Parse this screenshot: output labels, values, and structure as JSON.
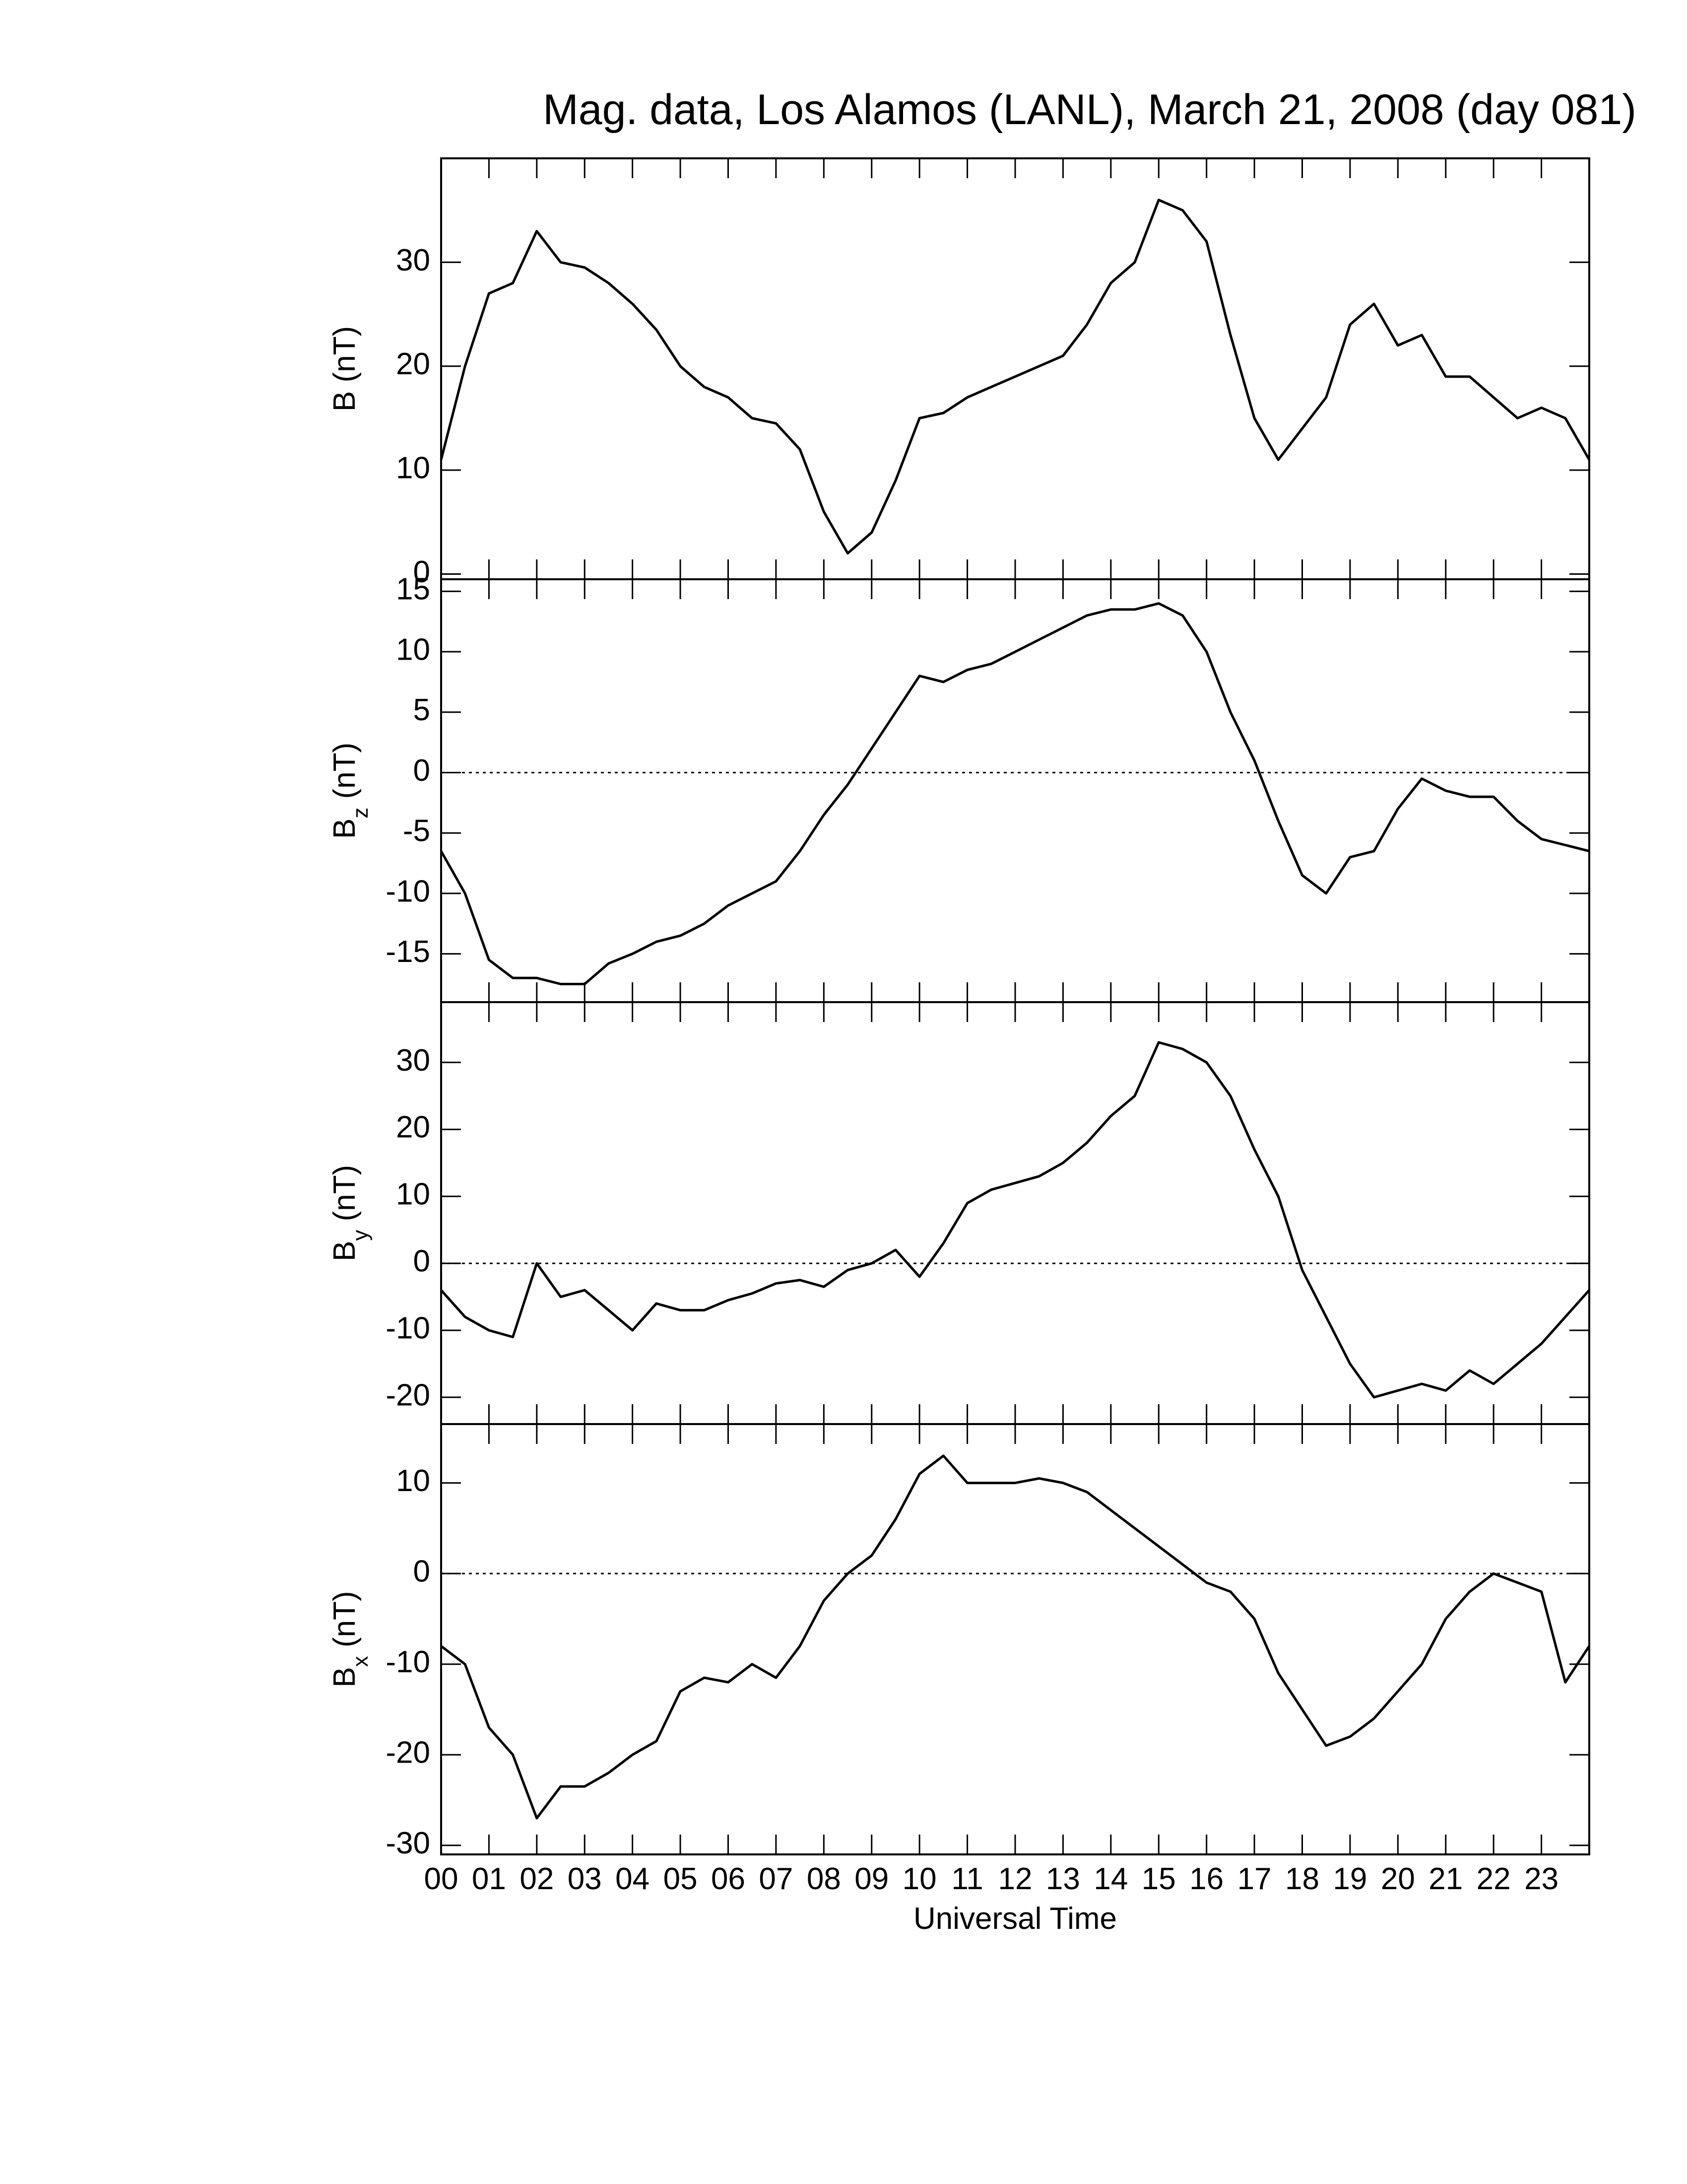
{
  "chart_data": [
    {
      "type": "line",
      "title": "Mag. data, Los Alamos (LANL), March 21, 2008 (day 081)",
      "ylabel": "B",
      "ylabel_unit": "(nT)",
      "color": "#000000",
      "zero_line": false,
      "xlim": [
        0,
        24
      ],
      "ylim": [
        -0.5,
        40
      ],
      "yticks": [
        0,
        10,
        20,
        30
      ],
      "x": [
        0,
        0.5,
        1,
        1.5,
        2,
        2.5,
        3,
        3.5,
        4,
        4.5,
        5,
        5.5,
        6,
        6.5,
        7,
        7.5,
        8,
        8.5,
        9,
        9.5,
        10,
        10.5,
        11,
        11.5,
        12,
        12.5,
        13,
        13.5,
        14,
        14.5,
        15,
        15.5,
        16,
        16.5,
        17,
        17.5,
        18,
        18.5,
        19,
        19.5,
        20,
        20.5,
        21,
        21.5,
        22,
        22.5,
        23,
        23.5,
        24
      ],
      "values": [
        11,
        20,
        27,
        28,
        33,
        30,
        29.5,
        28,
        26,
        23.5,
        20,
        18,
        17,
        15,
        14.5,
        12,
        6,
        2,
        4,
        9,
        15,
        15.5,
        17,
        18,
        19,
        20,
        21,
        24,
        28,
        30,
        36,
        35,
        32,
        23,
        15,
        11,
        14,
        17,
        24,
        26,
        22,
        23,
        19,
        19,
        17,
        15,
        16,
        15,
        11
      ]
    },
    {
      "type": "line",
      "ylabel": "B",
      "ylabel_sub": "z",
      "ylabel_unit": "(nT)",
      "color": "#000000",
      "zero_line": true,
      "xlim": [
        0,
        24
      ],
      "ylim": [
        -19,
        16
      ],
      "yticks": [
        -15,
        -10,
        -5,
        0,
        5,
        10,
        15
      ],
      "x": [
        0,
        0.5,
        1,
        1.5,
        2,
        2.5,
        3,
        3.5,
        4,
        4.5,
        5,
        5.5,
        6,
        6.5,
        7,
        7.5,
        8,
        8.5,
        9,
        9.5,
        10,
        10.5,
        11,
        11.5,
        12,
        12.5,
        13,
        13.5,
        14,
        14.5,
        15,
        15.5,
        16,
        16.5,
        17,
        17.5,
        18,
        18.5,
        19,
        19.5,
        20,
        20.5,
        21,
        21.5,
        22,
        22.5,
        23,
        23.5,
        24
      ],
      "values": [
        -6.5,
        -10,
        -15.5,
        -17,
        -17,
        -17.5,
        -17.5,
        -15.8,
        -15,
        -14,
        -13.5,
        -12.5,
        -11,
        -10,
        -9,
        -6.5,
        -3.5,
        -1,
        2,
        5,
        8,
        7.5,
        8.5,
        9,
        10,
        11,
        12,
        13,
        13.5,
        13.5,
        14,
        13,
        10,
        5,
        1,
        -4,
        -8.5,
        -10,
        -7,
        -6.5,
        -3,
        -0.5,
        -1.5,
        -2,
        -2,
        -4,
        -5.5,
        -6,
        -6.5
      ]
    },
    {
      "type": "line",
      "ylabel": "B",
      "ylabel_sub": "y",
      "ylabel_unit": "(nT)",
      "color": "#000000",
      "zero_line": true,
      "xlim": [
        0,
        24
      ],
      "ylim": [
        -24,
        39
      ],
      "yticks": [
        -20,
        -10,
        0,
        10,
        20,
        30
      ],
      "x": [
        0,
        0.5,
        1,
        1.5,
        2,
        2.5,
        3,
        3.5,
        4,
        4.5,
        5,
        5.5,
        6,
        6.5,
        7,
        7.5,
        8,
        8.5,
        9,
        9.5,
        10,
        10.5,
        11,
        11.5,
        12,
        12.5,
        13,
        13.5,
        14,
        14.5,
        15,
        15.5,
        16,
        16.5,
        17,
        17.5,
        18,
        18.5,
        19,
        19.5,
        20,
        20.5,
        21,
        21.5,
        22,
        22.5,
        23,
        23.5,
        24
      ],
      "values": [
        -4,
        -8,
        -10,
        -11,
        0,
        -5,
        -4,
        -7,
        -10,
        -6,
        -7,
        -7,
        -5.5,
        -4.5,
        -3,
        -2.5,
        -3.5,
        -1,
        0,
        2,
        -2,
        3,
        9,
        11,
        12,
        13,
        15,
        18,
        22,
        25,
        33,
        32,
        30,
        25,
        17,
        10,
        -1,
        -8,
        -15,
        -20,
        -19,
        -18,
        -19,
        -16,
        -18,
        -15,
        -12,
        -8,
        -4
      ]
    },
    {
      "type": "line",
      "ylabel": "B",
      "ylabel_sub": "x",
      "ylabel_unit": "(nT)",
      "color": "#000000",
      "zero_line": true,
      "xlabel": "Universal Time",
      "xlim": [
        0,
        24
      ],
      "ylim": [
        -31,
        16.5
      ],
      "yticks": [
        -30,
        -20,
        -10,
        0,
        10
      ],
      "xticks": [
        {
          "value": 0,
          "label": "00"
        },
        {
          "value": 1,
          "label": "01"
        },
        {
          "value": 2,
          "label": "02"
        },
        {
          "value": 3,
          "label": "03"
        },
        {
          "value": 4,
          "label": "04"
        },
        {
          "value": 5,
          "label": "05"
        },
        {
          "value": 6,
          "label": "06"
        },
        {
          "value": 7,
          "label": "07"
        },
        {
          "value": 8,
          "label": "08"
        },
        {
          "value": 9,
          "label": "09"
        },
        10,
        11,
        12,
        13,
        14,
        15,
        16,
        17,
        18,
        19,
        20,
        21,
        22,
        23
      ],
      "x": [
        0,
        0.5,
        1,
        1.5,
        2,
        2.5,
        3,
        3.5,
        4,
        4.5,
        5,
        5.5,
        6,
        6.5,
        7,
        7.5,
        8,
        8.5,
        9,
        9.5,
        10,
        10.5,
        11,
        11.5,
        12,
        12.5,
        13,
        13.5,
        14,
        14.5,
        15,
        15.5,
        16,
        16.5,
        17,
        17.5,
        18,
        18.5,
        19,
        19.5,
        20,
        20.5,
        21,
        21.5,
        22,
        22.5,
        23,
        23.5,
        24
      ],
      "values": [
        -8,
        -10,
        -17,
        -20,
        -27,
        -23.5,
        -23.5,
        -22,
        -20,
        -18.5,
        -13,
        -11.5,
        -12,
        -10,
        -11.5,
        -8,
        -3,
        0,
        2,
        6,
        11,
        13,
        10,
        10,
        10,
        10.5,
        10,
        9,
        7,
        5,
        3,
        1,
        -1,
        -2,
        -5,
        -11,
        -15,
        -19,
        -18,
        -16,
        -13,
        -10,
        -5,
        -2,
        0,
        -1,
        -2,
        -12,
        -8
      ]
    }
  ]
}
